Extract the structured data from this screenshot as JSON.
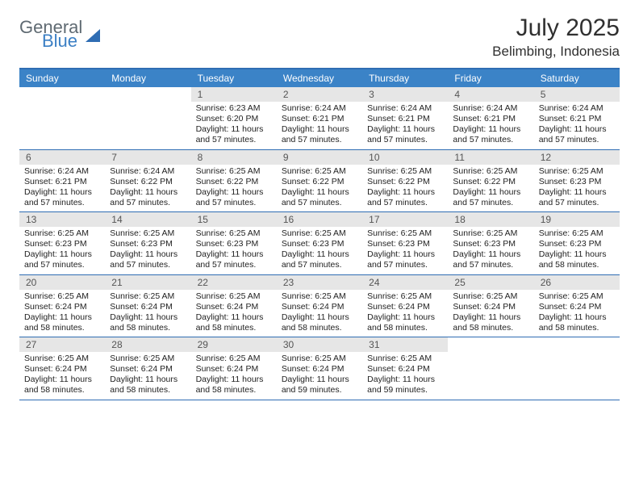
{
  "brand": {
    "part1": "General",
    "part2": "Blue"
  },
  "title": "July 2025",
  "location": "Belimbing, Indonesia",
  "colors": {
    "header_bg": "#3b83c7",
    "header_border": "#2f6db3",
    "daynum_bg": "#e6e6e6",
    "text": "#222222",
    "brand_gray": "#5f6a72",
    "brand_blue": "#3b7fc4"
  },
  "layout": {
    "cols": 7,
    "rows": 5,
    "first_weekday_index": 2
  },
  "dow": [
    "Sunday",
    "Monday",
    "Tuesday",
    "Wednesday",
    "Thursday",
    "Friday",
    "Saturday"
  ],
  "days": [
    {
      "n": 1,
      "sunrise": "6:23 AM",
      "sunset": "6:20 PM",
      "dl": "11 hours and 57 minutes."
    },
    {
      "n": 2,
      "sunrise": "6:24 AM",
      "sunset": "6:21 PM",
      "dl": "11 hours and 57 minutes."
    },
    {
      "n": 3,
      "sunrise": "6:24 AM",
      "sunset": "6:21 PM",
      "dl": "11 hours and 57 minutes."
    },
    {
      "n": 4,
      "sunrise": "6:24 AM",
      "sunset": "6:21 PM",
      "dl": "11 hours and 57 minutes."
    },
    {
      "n": 5,
      "sunrise": "6:24 AM",
      "sunset": "6:21 PM",
      "dl": "11 hours and 57 minutes."
    },
    {
      "n": 6,
      "sunrise": "6:24 AM",
      "sunset": "6:21 PM",
      "dl": "11 hours and 57 minutes."
    },
    {
      "n": 7,
      "sunrise": "6:24 AM",
      "sunset": "6:22 PM",
      "dl": "11 hours and 57 minutes."
    },
    {
      "n": 8,
      "sunrise": "6:25 AM",
      "sunset": "6:22 PM",
      "dl": "11 hours and 57 minutes."
    },
    {
      "n": 9,
      "sunrise": "6:25 AM",
      "sunset": "6:22 PM",
      "dl": "11 hours and 57 minutes."
    },
    {
      "n": 10,
      "sunrise": "6:25 AM",
      "sunset": "6:22 PM",
      "dl": "11 hours and 57 minutes."
    },
    {
      "n": 11,
      "sunrise": "6:25 AM",
      "sunset": "6:22 PM",
      "dl": "11 hours and 57 minutes."
    },
    {
      "n": 12,
      "sunrise": "6:25 AM",
      "sunset": "6:23 PM",
      "dl": "11 hours and 57 minutes."
    },
    {
      "n": 13,
      "sunrise": "6:25 AM",
      "sunset": "6:23 PM",
      "dl": "11 hours and 57 minutes."
    },
    {
      "n": 14,
      "sunrise": "6:25 AM",
      "sunset": "6:23 PM",
      "dl": "11 hours and 57 minutes."
    },
    {
      "n": 15,
      "sunrise": "6:25 AM",
      "sunset": "6:23 PM",
      "dl": "11 hours and 57 minutes."
    },
    {
      "n": 16,
      "sunrise": "6:25 AM",
      "sunset": "6:23 PM",
      "dl": "11 hours and 57 minutes."
    },
    {
      "n": 17,
      "sunrise": "6:25 AM",
      "sunset": "6:23 PM",
      "dl": "11 hours and 57 minutes."
    },
    {
      "n": 18,
      "sunrise": "6:25 AM",
      "sunset": "6:23 PM",
      "dl": "11 hours and 57 minutes."
    },
    {
      "n": 19,
      "sunrise": "6:25 AM",
      "sunset": "6:23 PM",
      "dl": "11 hours and 58 minutes."
    },
    {
      "n": 20,
      "sunrise": "6:25 AM",
      "sunset": "6:24 PM",
      "dl": "11 hours and 58 minutes."
    },
    {
      "n": 21,
      "sunrise": "6:25 AM",
      "sunset": "6:24 PM",
      "dl": "11 hours and 58 minutes."
    },
    {
      "n": 22,
      "sunrise": "6:25 AM",
      "sunset": "6:24 PM",
      "dl": "11 hours and 58 minutes."
    },
    {
      "n": 23,
      "sunrise": "6:25 AM",
      "sunset": "6:24 PM",
      "dl": "11 hours and 58 minutes."
    },
    {
      "n": 24,
      "sunrise": "6:25 AM",
      "sunset": "6:24 PM",
      "dl": "11 hours and 58 minutes."
    },
    {
      "n": 25,
      "sunrise": "6:25 AM",
      "sunset": "6:24 PM",
      "dl": "11 hours and 58 minutes."
    },
    {
      "n": 26,
      "sunrise": "6:25 AM",
      "sunset": "6:24 PM",
      "dl": "11 hours and 58 minutes."
    },
    {
      "n": 27,
      "sunrise": "6:25 AM",
      "sunset": "6:24 PM",
      "dl": "11 hours and 58 minutes."
    },
    {
      "n": 28,
      "sunrise": "6:25 AM",
      "sunset": "6:24 PM",
      "dl": "11 hours and 58 minutes."
    },
    {
      "n": 29,
      "sunrise": "6:25 AM",
      "sunset": "6:24 PM",
      "dl": "11 hours and 58 minutes."
    },
    {
      "n": 30,
      "sunrise": "6:25 AM",
      "sunset": "6:24 PM",
      "dl": "11 hours and 59 minutes."
    },
    {
      "n": 31,
      "sunrise": "6:25 AM",
      "sunset": "6:24 PM",
      "dl": "11 hours and 59 minutes."
    }
  ],
  "labels": {
    "sunrise": "Sunrise:",
    "sunset": "Sunset:",
    "daylight": "Daylight:"
  }
}
